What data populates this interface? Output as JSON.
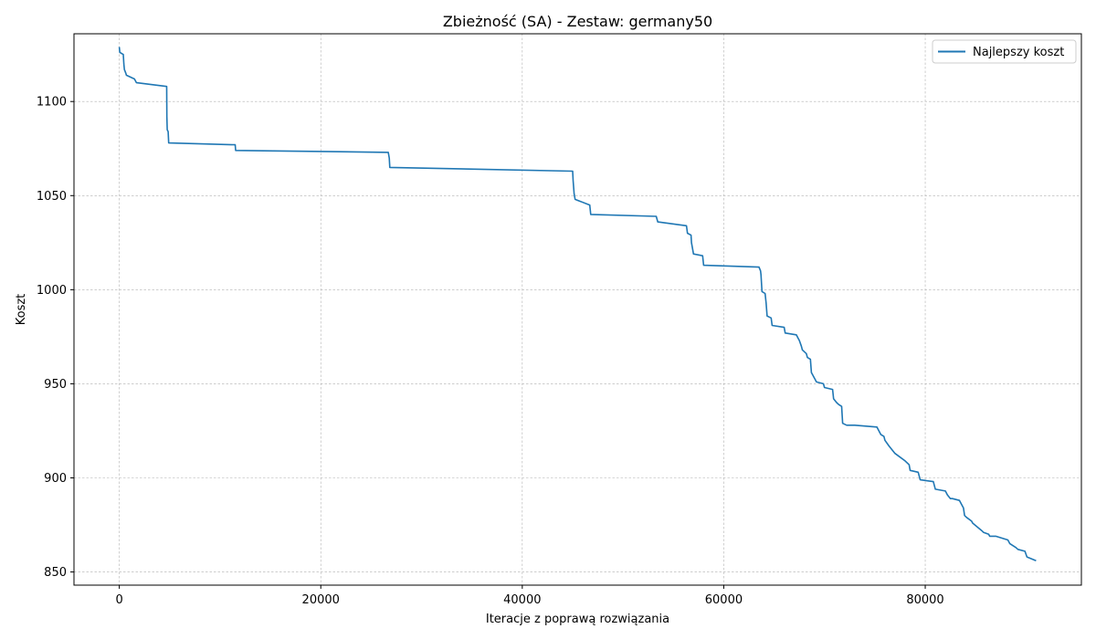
{
  "chart_data": {
    "type": "line",
    "title": "Zbieżność (SA) - Zestaw: germany50",
    "xlabel": "Iteracje z poprawą rozwiązania",
    "ylabel": "Koszt",
    "xlim": [
      -4500,
      95500
    ],
    "ylim": [
      843,
      1136
    ],
    "xticks": [
      0,
      20000,
      40000,
      60000,
      80000
    ],
    "xtick_labels": [
      "0",
      "20000",
      "40000",
      "60000",
      "80000"
    ],
    "yticks": [
      850,
      900,
      950,
      1000,
      1050,
      1100
    ],
    "ytick_labels": [
      "850",
      "900",
      "950",
      "1000",
      "1050",
      "1100"
    ],
    "grid": true,
    "legend_position": "top-right",
    "series": [
      {
        "name": "Najlepszy koszt",
        "color": "#1f77b4",
        "x": [
          0,
          50,
          80,
          400,
          450,
          500,
          650,
          700,
          1500,
          1700,
          4700,
          4720,
          4760,
          4850,
          4900,
          11500,
          11550,
          26700,
          26800,
          26850,
          45000,
          45050,
          45150,
          45250,
          46700,
          46800,
          53300,
          53450,
          56300,
          56400,
          56750,
          56800,
          57000,
          57900,
          58000,
          63500,
          63650,
          63700,
          63800,
          64100,
          64200,
          64300,
          64700,
          64800,
          66000,
          66100,
          67200,
          67400,
          67500,
          67700,
          67800,
          68200,
          68300,
          68600,
          68700,
          68800,
          69100,
          69200,
          69900,
          70000,
          70800,
          70900,
          71200,
          71400,
          71700,
          71800,
          72200,
          73000,
          75200,
          75400,
          75600,
          75900,
          76000,
          76400,
          76700,
          77000,
          77500,
          78000,
          78400,
          78500,
          79300,
          79500,
          80800,
          81000,
          82000,
          82200,
          82500,
          82700,
          83400,
          83600,
          83800,
          83900,
          84100,
          84600,
          84700,
          85600,
          85800,
          86300,
          86400,
          87000,
          88200,
          88400,
          89000,
          89200,
          89900,
          90100,
          91000
        ],
        "values": [
          1129,
          1126,
          1126,
          1125,
          1120,
          1117,
          1115,
          1114,
          1112,
          1110,
          1108,
          1092,
          1085,
          1084,
          1078,
          1077,
          1074,
          1073,
          1070,
          1065,
          1063,
          1058,
          1051,
          1048,
          1045,
          1040,
          1039,
          1036,
          1034,
          1030,
          1029,
          1025,
          1019,
          1018,
          1013,
          1012,
          1010,
          1008,
          999,
          998,
          993,
          986,
          985,
          981,
          980,
          977,
          976,
          974,
          973,
          970,
          968,
          966,
          964,
          963,
          956,
          955,
          952,
          951,
          950,
          948,
          947,
          942,
          940,
          939,
          938,
          929,
          928,
          928,
          927,
          925,
          923,
          922,
          920,
          917,
          915,
          913,
          911,
          909,
          907,
          904,
          903,
          899,
          898,
          894,
          893,
          891,
          889,
          889,
          888,
          886,
          884,
          880,
          879,
          877,
          876,
          872,
          871,
          870,
          869,
          869,
          867,
          865,
          863,
          862,
          861,
          858,
          856
        ]
      }
    ]
  }
}
